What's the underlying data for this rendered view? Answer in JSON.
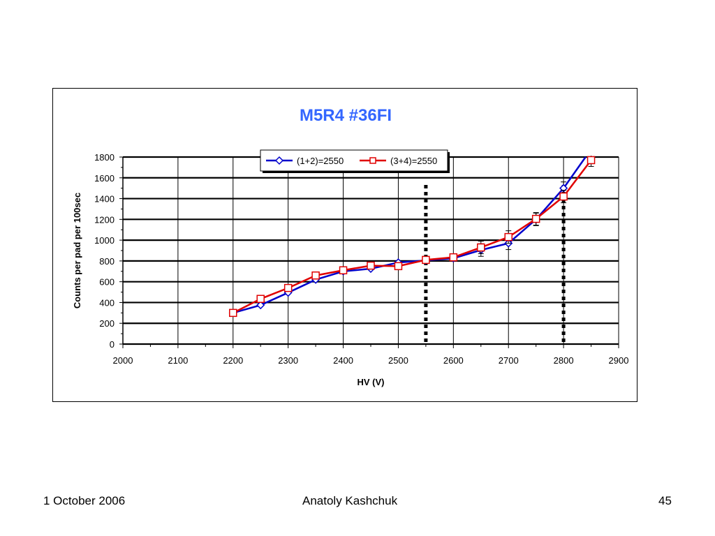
{
  "chart_data": {
    "type": "line",
    "title": "M5R4 #36FI",
    "xlabel": "HV (V)",
    "ylabel": "Counts  per pad per 100sec",
    "xlim": [
      2000,
      2900
    ],
    "ylim": [
      0,
      1800
    ],
    "x_ticks": [
      2000,
      2100,
      2200,
      2300,
      2400,
      2500,
      2600,
      2700,
      2800,
      2900
    ],
    "y_ticks": [
      0,
      200,
      400,
      600,
      800,
      1000,
      1200,
      1400,
      1600,
      1800
    ],
    "grid": "horizontal and vertical",
    "legend_position": "top",
    "reference_lines_x": [
      2550,
      2800
    ],
    "series": [
      {
        "name": "(1+2)=2550",
        "color": "#0000cc",
        "marker": "diamond",
        "x": [
          2200,
          2250,
          2300,
          2350,
          2400,
          2450,
          2500,
          2550,
          2600,
          2650,
          2700,
          2750,
          2800,
          2840
        ],
        "y": [
          300,
          375,
          495,
          620,
          700,
          725,
          785,
          805,
          825,
          905,
          970,
          1200,
          1500,
          1800
        ]
      },
      {
        "name": "(3+4)=2550",
        "color": "#e00000",
        "marker": "square",
        "x": [
          2200,
          2250,
          2300,
          2350,
          2400,
          2450,
          2500,
          2550,
          2600,
          2650,
          2700,
          2750,
          2800,
          2850
        ],
        "y": [
          300,
          435,
          540,
          660,
          710,
          755,
          750,
          810,
          835,
          930,
          1030,
          1205,
          1420,
          1770
        ]
      }
    ]
  },
  "footer": {
    "date": "1 October 2006",
    "author": "Anatoly Kashchuk",
    "page": "45"
  }
}
